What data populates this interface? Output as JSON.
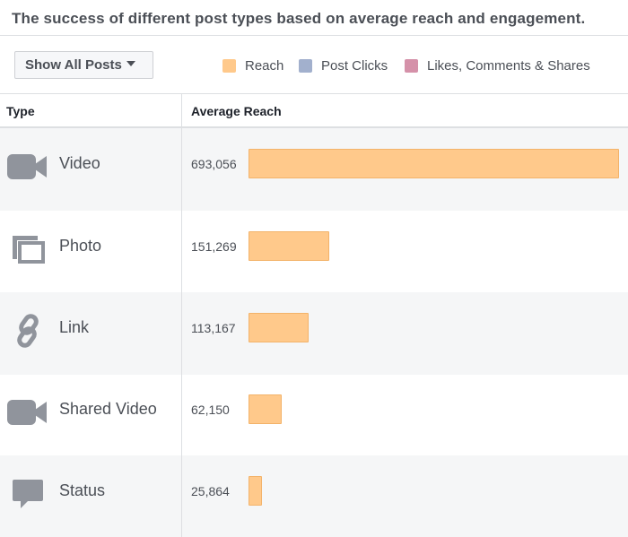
{
  "title": "The success of different post types based on average reach and engagement.",
  "filter_button": {
    "label": "Show All Posts"
  },
  "legend": [
    {
      "label": "Reach",
      "color": "#ffc98b"
    },
    {
      "label": "Post Clicks",
      "color": "#a2b0cd"
    },
    {
      "label": "Likes, Comments & Shares",
      "color": "#d591a9"
    }
  ],
  "table": {
    "columns": [
      "Type",
      "Average Reach"
    ],
    "rows": [
      {
        "type": "Video",
        "icon": "video-camera-icon",
        "reach_label": "693,056",
        "reach": 693056
      },
      {
        "type": "Photo",
        "icon": "photo-icon",
        "reach_label": "151,269",
        "reach": 151269
      },
      {
        "type": "Link",
        "icon": "link-icon",
        "reach_label": "113,167",
        "reach": 113167
      },
      {
        "type": "Shared Video",
        "icon": "video-camera-icon",
        "reach_label": "62,150",
        "reach": 62150
      },
      {
        "type": "Status",
        "icon": "speech-bubble-icon",
        "reach_label": "25,864",
        "reach": 25864
      }
    ]
  },
  "chart_data": {
    "type": "bar",
    "categories": [
      "Video",
      "Photo",
      "Link",
      "Shared Video",
      "Status"
    ],
    "series": [
      {
        "name": "Reach",
        "values": [
          693056,
          151269,
          113167,
          62150,
          25864
        ]
      }
    ],
    "legend": [
      "Reach",
      "Post Clicks",
      "Likes, Comments & Shares"
    ],
    "ylabel": "Average Reach",
    "orientation": "horizontal"
  }
}
